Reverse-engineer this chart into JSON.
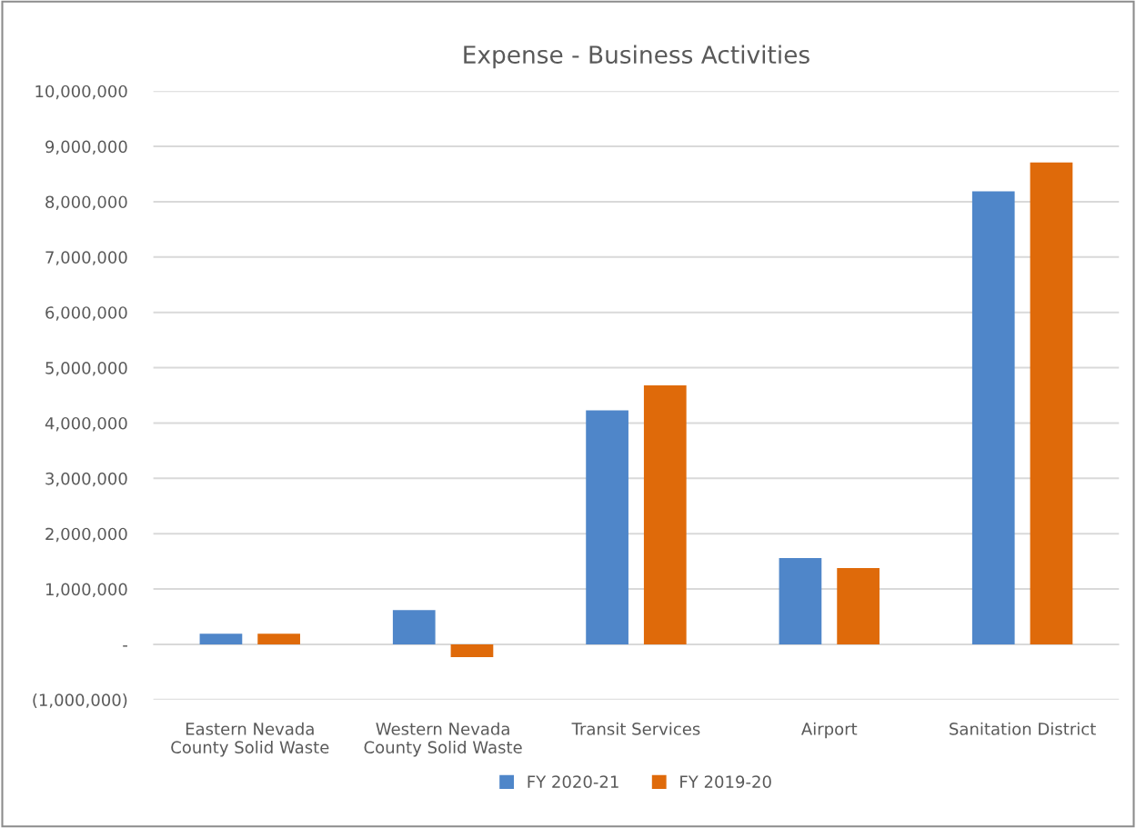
{
  "chart_data": {
    "type": "bar",
    "title": "Expense - Business Activities",
    "categories": [
      "Eastern Nevada\nCounty Solid Waste",
      "Western Nevada\nCounty Solid Waste",
      "Transit Services",
      "Airport",
      "Sanitation District"
    ],
    "series": [
      {
        "name": "FY 2020-21",
        "color": "#4f86c9",
        "values": [
          190000,
          620000,
          4230000,
          1560000,
          8190000
        ]
      },
      {
        "name": "FY 2019-20",
        "color": "#df6a0a",
        "values": [
          190000,
          -230000,
          4680000,
          1380000,
          8710000
        ]
      }
    ],
    "ylim": [
      -1000000,
      10000000
    ],
    "yticks": [
      {
        "value": -1000000,
        "label": "(1,000,000)"
      },
      {
        "value": 0,
        "label": "-"
      },
      {
        "value": 1000000,
        "label": "1,000,000"
      },
      {
        "value": 2000000,
        "label": "2,000,000"
      },
      {
        "value": 3000000,
        "label": "3,000,000"
      },
      {
        "value": 4000000,
        "label": "4,000,000"
      },
      {
        "value": 5000000,
        "label": "5,000,000"
      },
      {
        "value": 6000000,
        "label": "6,000,000"
      },
      {
        "value": 7000000,
        "label": "7,000,000"
      },
      {
        "value": 8000000,
        "label": "8,000,000"
      },
      {
        "value": 9000000,
        "label": "9,000,000"
      },
      {
        "value": 10000000,
        "label": "10,000,000"
      }
    ],
    "grid": "y",
    "legend": "bottom"
  }
}
